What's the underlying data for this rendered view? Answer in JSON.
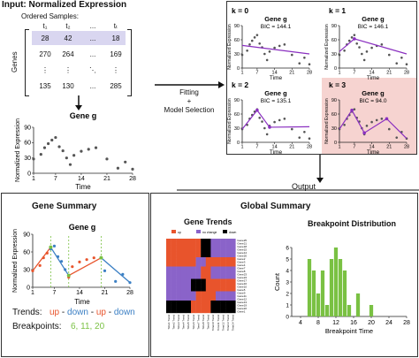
{
  "input": {
    "title": "Input: Normalized Expression",
    "ordered_samples": "Ordered Samples:",
    "col_headers": [
      "t₁",
      "t₂",
      "...",
      "tₜ"
    ],
    "genes_label": "Genes",
    "rows": [
      [
        "28",
        "42",
        "...",
        "18"
      ],
      [
        "270",
        "264",
        "...",
        "169"
      ],
      [
        "⋮",
        "⋮",
        "⋱",
        "⋮"
      ],
      [
        "135",
        "130",
        "...",
        "285"
      ]
    ]
  },
  "gene_g_plot": {
    "title": "Gene g",
    "ylabel": "Normalized Expression",
    "xlabel": "Time",
    "xticks": [
      "1",
      "7",
      "14",
      "21",
      "28"
    ],
    "yticks": [
      "0",
      "30",
      "60",
      "90"
    ]
  },
  "fitting": {
    "line1": "Fitting",
    "line2": "+",
    "line3": "Model Selection"
  },
  "models": [
    {
      "k_label": "k = 0",
      "title": "Gene g",
      "bic": "BIC = 144.1"
    },
    {
      "k_label": "k = 1",
      "title": "Gene g",
      "bic": "BIC = 146.1"
    },
    {
      "k_label": "k = 2",
      "title": "Gene g",
      "bic": "BIC = 135.1"
    },
    {
      "k_label": "k = 3",
      "title": "Gene g",
      "bic": "BIC = 94.0"
    }
  ],
  "models_common": {
    "ylabel": "Normalized Expression",
    "xlabel": "Time",
    "xticks": [
      "1",
      "7",
      "14",
      "21",
      "28"
    ],
    "yticks": [
      "0",
      "30",
      "60",
      "90"
    ]
  },
  "output": "Output",
  "gene_summary": {
    "title": "Gene Summary",
    "plot_title": "Gene g",
    "ylabel": "Normalized Expression",
    "xlabel": "Time",
    "xticks": [
      "1",
      "7",
      "14",
      "21",
      "28"
    ],
    "yticks": [
      "0",
      "30",
      "60",
      "90"
    ],
    "trends_label": "Trends:",
    "trends": [
      "up",
      " - ",
      "down",
      " - ",
      "up",
      " - ",
      "down"
    ],
    "breakpoints_label": "Breakpoints:",
    "breakpoints": "6, 11, 20",
    "colors": {
      "up": "#e8542c",
      "down": "#3b7fc4",
      "bp": "#7ac143"
    }
  },
  "global_summary": {
    "title": "Global Summary",
    "gene_trends_title": "Gene Trends",
    "legend": [
      "up",
      "no change",
      "down"
    ],
    "legend_colors": [
      "#e8542c",
      "#8a63c9",
      "#000000"
    ],
    "gene_names": [
      "Gene25",
      "Gene21",
      "Gene18",
      "Gene15",
      "Gene14",
      "Gene20",
      "Gene2",
      "Gene3",
      "Gene4",
      "Gene7",
      "Gene8",
      "Gene23",
      "Gene24",
      "Gene17",
      "Gene16",
      "Gene10",
      "Gene5",
      "Gene9",
      "Gene11",
      "Gene12",
      "Gene13",
      "Gene19",
      "Gene22",
      "Gene1"
    ],
    "time_labels": [
      "Time1 Trend",
      "Time2 Trend",
      "Time3 Trend",
      "Time4 Trend",
      "Time5 Trend",
      "Time6 Trend",
      "Time7 Trend",
      "Time8 Trend",
      "Time9 Trend",
      "Time10 Trend",
      "Time11 Trend",
      "Time12 Trend",
      "Time13 Trend",
      "Time14 Trend"
    ],
    "bp_title": "Breakpoint Distribution",
    "bp_xlabel": "Breakpoint Time",
    "bp_ylabel": "Count",
    "bp_xticks": [
      "4",
      "8",
      "12",
      "16",
      "20",
      "24",
      "28"
    ],
    "bp_yticks": [
      "0",
      "1",
      "2",
      "3",
      "4",
      "5",
      "6"
    ],
    "bar_color": "#7ac143"
  },
  "chart_data": [
    {
      "type": "bar",
      "title": "Breakpoint Distribution",
      "xlabel": "Breakpoint Time",
      "ylabel": "Count",
      "x": [
        6,
        7,
        8,
        9,
        10,
        11,
        12,
        13,
        14,
        15,
        17,
        20
      ],
      "values": [
        5,
        4,
        2,
        4,
        1,
        5,
        6,
        5,
        4,
        1,
        2,
        1
      ],
      "xlim": [
        2,
        28
      ],
      "ylim": [
        0,
        6
      ]
    },
    {
      "type": "scatter",
      "title": "Gene g",
      "xlabel": "Time",
      "ylabel": "Normalized Expression",
      "x": [
        1,
        3,
        4,
        5,
        6,
        7,
        8,
        9,
        10,
        11,
        12,
        14,
        16,
        18,
        21,
        24,
        26,
        28
      ],
      "values": [
        28,
        37,
        50,
        58,
        65,
        70,
        52,
        44,
        30,
        17,
        35,
        43,
        47,
        50,
        28,
        10,
        22,
        8
      ],
      "ylim": [
        0,
        90
      ],
      "xlim": [
        1,
        28
      ]
    }
  ]
}
